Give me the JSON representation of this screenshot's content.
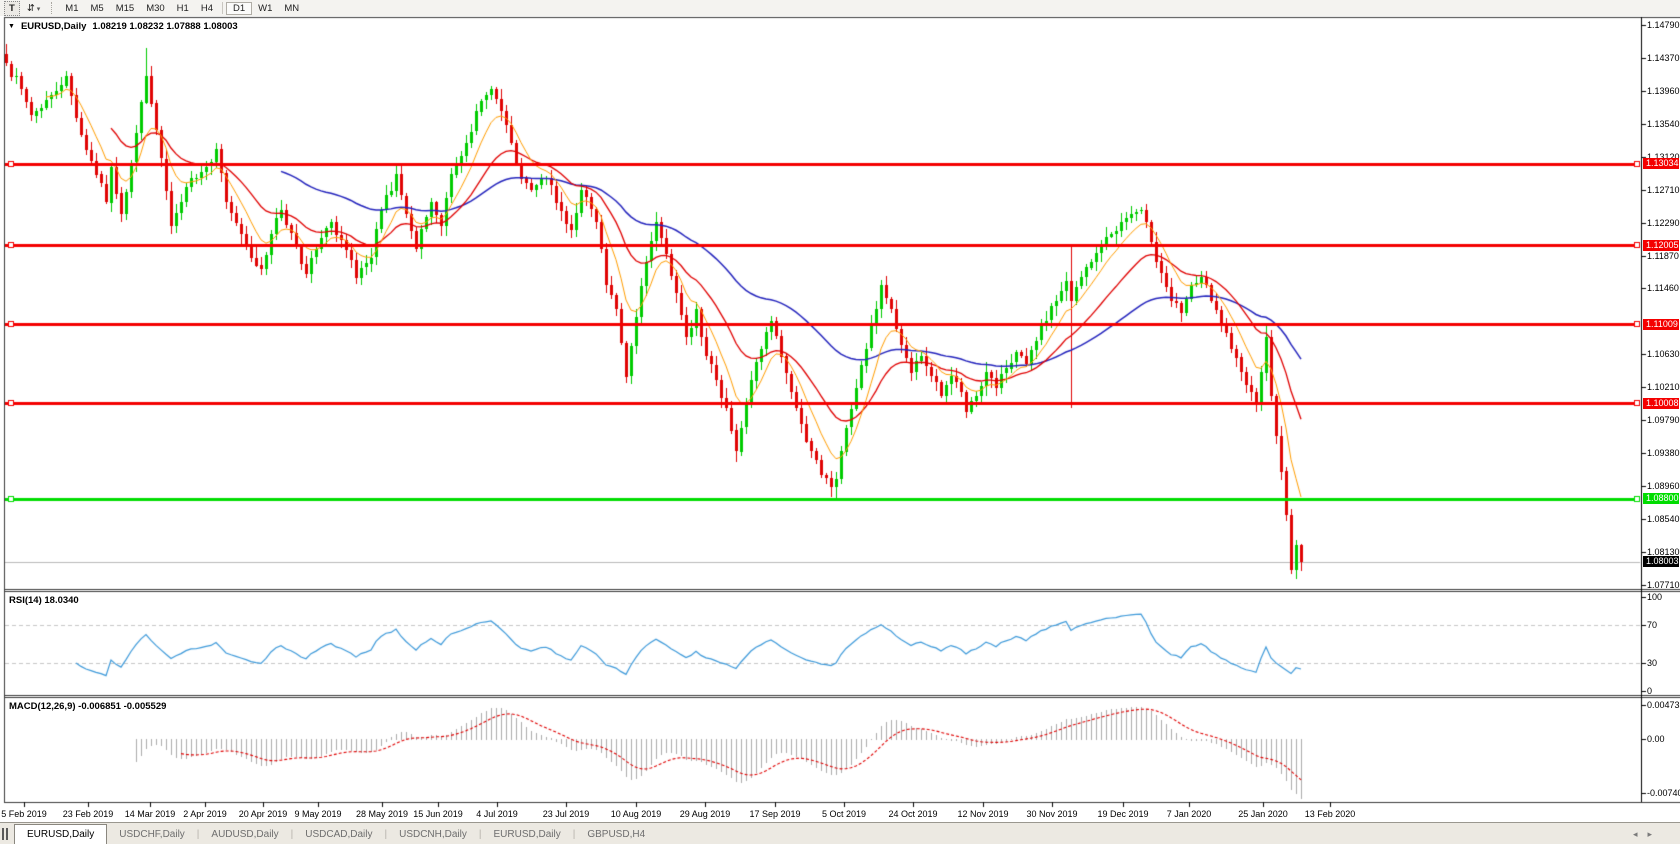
{
  "toolbar": {
    "text_tool_label": "T",
    "cycle_icon": "⇵",
    "dropdown_caret": "▾",
    "timeframes": [
      "M1",
      "M5",
      "M15",
      "M30",
      "H1",
      "H4",
      "D1",
      "W1",
      "MN"
    ],
    "active_timeframe": "D1"
  },
  "chart_header": {
    "collapse_caret": "▼",
    "symbol": "EURUSD,Daily",
    "ohlc": "1.08219 1.08232 1.07888 1.08003"
  },
  "rsi_panel": {
    "name": "RSI(14)",
    "value": "18.0340"
  },
  "macd_panel": {
    "name": "MACD(12,26,9)",
    "values": "-0.006851 -0.005529"
  },
  "tabs": {
    "items": [
      "EURUSD,Daily",
      "USDCHF,Daily",
      "AUDUSD,Daily",
      "USDCAD,Daily",
      "USDCNH,Daily",
      "EURUSD,Daily",
      "GBPUSD,H4"
    ],
    "active_index": 0,
    "scroll_left": "◂",
    "scroll_right": "▸"
  },
  "chart_data": {
    "type": "candlestick",
    "symbol": "EURUSD",
    "timeframe": "Daily",
    "title": "EURUSD,Daily",
    "last_ohlc": {
      "open": 1.08219,
      "high": 1.08232,
      "low": 1.07888,
      "close": 1.08003
    },
    "ylim": [
      1.0771,
      1.1485
    ],
    "bars": 260,
    "colors": {
      "up": "#00cb00",
      "down": "#e00404",
      "sr_red": "#f40000",
      "sr_green": "#00dd00",
      "current_price_line": "#b9b9b9",
      "rsi_line": "#3e9ada",
      "macd_hist": "#ababab",
      "macd_signal": "#e00000",
      "ma_fast": "#ff9d00",
      "ma_mid": "#e00000",
      "ma_slow": "#2525bd"
    },
    "sr_lines": [
      {
        "price": 1.13034,
        "label": "1.13034",
        "color": "#f40000"
      },
      {
        "price": 1.12005,
        "label": "1.12005",
        "color": "#f40000"
      },
      {
        "price": 1.11009,
        "label": "1.11009",
        "color": "#f40000"
      },
      {
        "price": 1.10008,
        "label": "1.10008",
        "color": "#f40000"
      },
      {
        "price": 1.088,
        "label": "1.08800",
        "color": "#00dd00"
      }
    ],
    "current_price": {
      "price": 1.08003,
      "label": "1.08003",
      "box_color": "#000000"
    },
    "moving_averages": [
      {
        "period": 8,
        "color": "#ff9d00",
        "width": 1
      },
      {
        "period": 21,
        "color": "#e00000",
        "width": 1.3
      },
      {
        "period": 55,
        "color": "#2525bd",
        "width": 1.5
      }
    ],
    "price_ticks": [
      [
        "1.14790",
        1.1479
      ],
      [
        "1.14370",
        1.1437
      ],
      [
        "1.13960",
        1.1396
      ],
      [
        "1.13540",
        1.1354
      ],
      [
        "1.13120",
        1.1312
      ],
      [
        "1.12710",
        1.1271
      ],
      [
        "1.12290",
        1.1229
      ],
      [
        "1.11870",
        1.1187
      ],
      [
        "1.11460",
        1.1146
      ],
      [
        "1.10630",
        1.1063
      ],
      [
        "1.10210",
        1.1021
      ],
      [
        "1.09790",
        1.0979
      ],
      [
        "1.09380",
        1.0938
      ],
      [
        "1.08960",
        1.0896
      ],
      [
        "1.08540",
        1.0854
      ],
      [
        "1.08130",
        1.0813
      ],
      [
        "1.07710",
        1.0771
      ]
    ],
    "rsi": {
      "period": 14,
      "value": 18.034,
      "levels": [
        70,
        30
      ],
      "ticks": [
        [
          "100",
          100
        ],
        [
          "70",
          70
        ],
        [
          "30",
          30
        ],
        [
          "0",
          0
        ]
      ]
    },
    "macd": {
      "fast": 12,
      "slow": 26,
      "signal": 9,
      "values": [
        -0.006851,
        -0.005529
      ],
      "ticks": [
        [
          "0.00473",
          0.00473
        ],
        [
          "0.00",
          0
        ],
        [
          "-0.00740",
          -0.0074
        ]
      ]
    },
    "time_labels": [
      [
        "5 Feb 2019",
        24
      ],
      [
        "23 Feb 2019",
        88
      ],
      [
        "14 Mar 2019",
        150
      ],
      [
        "2 Apr 2019",
        205
      ],
      [
        "20 Apr 2019",
        263
      ],
      [
        "9 May 2019",
        318
      ],
      [
        "28 May 2019",
        382
      ],
      [
        "15 Jun 2019",
        438
      ],
      [
        "4 Jul 2019",
        497
      ],
      [
        "23 Jul 2019",
        566
      ],
      [
        "10 Aug 2019",
        636
      ],
      [
        "29 Aug 2019",
        705
      ],
      [
        "17 Sep 2019",
        775
      ],
      [
        "5 Oct 2019",
        844
      ],
      [
        "24 Oct 2019",
        913
      ],
      [
        "12 Nov 2019",
        983
      ],
      [
        "30 Nov 2019",
        1052
      ],
      [
        "19 Dec 2019",
        1123
      ],
      [
        "7 Jan 2020",
        1189
      ],
      [
        "25 Jan 2020",
        1263
      ],
      [
        "13 Feb 2020",
        1330
      ]
    ],
    "close_anchors": [
      [
        0,
        1.143
      ],
      [
        3,
        1.1398
      ],
      [
        5,
        1.1365
      ],
      [
        9,
        1.139
      ],
      [
        12,
        1.1415
      ],
      [
        15,
        1.134
      ],
      [
        18,
        1.129
      ],
      [
        20,
        1.1255
      ],
      [
        21,
        1.13
      ],
      [
        23,
        1.124
      ],
      [
        25,
        1.1305
      ],
      [
        28,
        1.1415
      ],
      [
        29,
        1.138
      ],
      [
        31,
        1.131
      ],
      [
        33,
        1.1225
      ],
      [
        35,
        1.1255
      ],
      [
        37,
        1.1285
      ],
      [
        40,
        1.13
      ],
      [
        42,
        1.1322
      ],
      [
        44,
        1.1255
      ],
      [
        47,
        1.1215
      ],
      [
        49,
        1.1185
      ],
      [
        51,
        1.117
      ],
      [
        53,
        1.1215
      ],
      [
        55,
        1.1245
      ],
      [
        58,
        1.12
      ],
      [
        60,
        1.1165
      ],
      [
        63,
        1.121
      ],
      [
        65,
        1.123
      ],
      [
        68,
        1.1195
      ],
      [
        70,
        1.116
      ],
      [
        73,
        1.1185
      ],
      [
        75,
        1.1245
      ],
      [
        78,
        1.129
      ],
      [
        80,
        1.124
      ],
      [
        82,
        1.1195
      ],
      [
        85,
        1.1255
      ],
      [
        87,
        1.1225
      ],
      [
        89,
        1.129
      ],
      [
        92,
        1.133
      ],
      [
        94,
        1.137
      ],
      [
        97,
        1.1398
      ],
      [
        99,
        1.137
      ],
      [
        101,
        1.133
      ],
      [
        103,
        1.1285
      ],
      [
        105,
        1.127
      ],
      [
        108,
        1.1285
      ],
      [
        110,
        1.1255
      ],
      [
        113,
        1.122
      ],
      [
        115,
        1.127
      ],
      [
        118,
        1.123
      ],
      [
        120,
        1.115
      ],
      [
        122,
        1.112
      ],
      [
        124,
        1.1035
      ],
      [
        126,
        1.111
      ],
      [
        128,
        1.118
      ],
      [
        130,
        1.123
      ],
      [
        132,
        1.119
      ],
      [
        134,
        1.114
      ],
      [
        136,
        1.1085
      ],
      [
        138,
        1.112
      ],
      [
        140,
        1.106
      ],
      [
        142,
        1.103
      ],
      [
        144,
        1.0995
      ],
      [
        146,
        1.094
      ],
      [
        147,
        1.097
      ],
      [
        149,
        1.103
      ],
      [
        151,
        1.107
      ],
      [
        153,
        1.1105
      ],
      [
        155,
        1.106
      ],
      [
        157,
        1.1015
      ],
      [
        159,
        1.0975
      ],
      [
        161,
        1.094
      ],
      [
        163,
        1.091
      ],
      [
        165,
        1.0895
      ],
      [
        166,
        1.0905
      ],
      [
        167,
        1.094
      ],
      [
        168,
        1.097
      ],
      [
        170,
        1.102
      ],
      [
        172,
        1.107
      ],
      [
        174,
        1.112
      ],
      [
        175,
        1.115
      ],
      [
        177,
        1.112
      ],
      [
        179,
        1.1075
      ],
      [
        181,
        1.104
      ],
      [
        183,
        1.106
      ],
      [
        185,
        1.1035
      ],
      [
        187,
        1.101
      ],
      [
        189,
        1.1035
      ],
      [
        191,
        1.1015
      ],
      [
        192,
        1.099
      ],
      [
        194,
        1.101
      ],
      [
        196,
        1.104
      ],
      [
        198,
        1.102
      ],
      [
        200,
        1.1045
      ],
      [
        202,
        1.1065
      ],
      [
        204,
        1.105
      ],
      [
        206,
        1.108
      ],
      [
        208,
        1.1105
      ],
      [
        210,
        1.113
      ],
      [
        212,
        1.1155
      ],
      [
        213,
        1.113
      ],
      [
        215,
        1.116
      ],
      [
        217,
        1.118
      ],
      [
        219,
        1.12
      ],
      [
        221,
        1.1215
      ],
      [
        223,
        1.123
      ],
      [
        225,
        1.124
      ],
      [
        227,
        1.1245
      ],
      [
        229,
        1.1205
      ],
      [
        231,
        1.1165
      ],
      [
        233,
        1.113
      ],
      [
        235,
        1.1115
      ],
      [
        237,
        1.115
      ],
      [
        239,
        1.116
      ],
      [
        241,
        1.113
      ],
      [
        243,
        1.11
      ],
      [
        245,
        1.107
      ],
      [
        247,
        1.104
      ],
      [
        249,
        1.1015
      ],
      [
        250,
        1.1
      ],
      [
        251,
        1.104
      ],
      [
        252,
        1.1085
      ],
      [
        253,
        1.101
      ],
      [
        254,
        1.096
      ],
      [
        255,
        1.0915
      ],
      [
        256,
        1.086
      ],
      [
        257,
        1.079
      ],
      [
        258,
        1.0822
      ],
      [
        259,
        1.08003
      ]
    ],
    "wick_overrides": {
      "28": {
        "h": 1.145
      },
      "124": {
        "l": 1.1027
      },
      "146": {
        "l": 1.0926
      },
      "166": {
        "l": 1.0878
      },
      "213": {
        "h": 1.1199,
        "l": 1.0995
      },
      "258": {
        "l": 1.0778
      },
      "259": {
        "h": 1.08232,
        "l": 1.07888
      }
    }
  }
}
